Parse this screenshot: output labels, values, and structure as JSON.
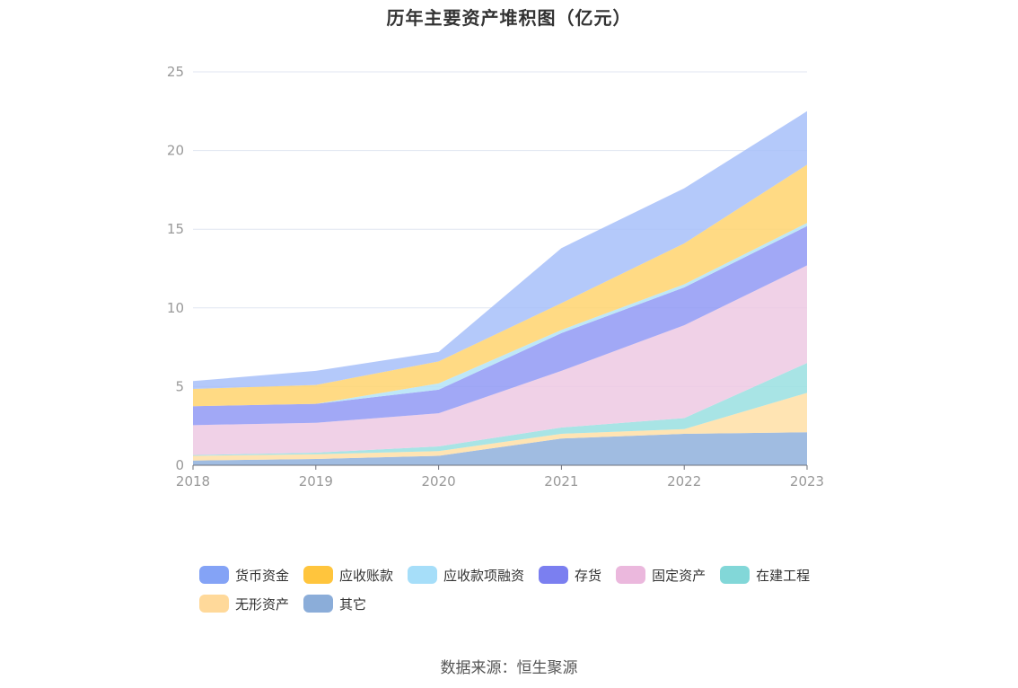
{
  "chart_data": {
    "type": "area",
    "stacked": true,
    "title": "历年主要资产堆积图（亿元）",
    "categories": [
      "2018",
      "2019",
      "2020",
      "2021",
      "2022",
      "2023"
    ],
    "ylim": [
      0,
      25
    ],
    "yticks": [
      0,
      5,
      10,
      15,
      20,
      25
    ],
    "grid": true,
    "legend_position": "bottom",
    "series": [
      {
        "name": "其它",
        "color": "#8fb0dc",
        "values": [
          0.3,
          0.4,
          0.6,
          1.7,
          2.0,
          2.1
        ]
      },
      {
        "name": "无形资产",
        "color": "#ffdfa6",
        "values": [
          0.3,
          0.3,
          0.3,
          0.3,
          0.3,
          2.5
        ]
      },
      {
        "name": "在建工程",
        "color": "#99dfe0",
        "values": [
          0.05,
          0.1,
          0.3,
          0.4,
          0.7,
          1.9
        ]
      },
      {
        "name": "固定资产",
        "color": "#edc9e3",
        "values": [
          1.9,
          1.9,
          2.1,
          3.6,
          5.9,
          6.2
        ]
      },
      {
        "name": "存货",
        "color": "#9099f5",
        "values": [
          1.2,
          1.2,
          1.5,
          2.4,
          2.4,
          2.5
        ]
      },
      {
        "name": "应收款项融资",
        "color": "#b3e3f7",
        "values": [
          0.0,
          0.0,
          0.4,
          0.2,
          0.2,
          0.2
        ]
      },
      {
        "name": "应收账款",
        "color": "#ffd36e",
        "values": [
          1.1,
          1.2,
          1.4,
          1.7,
          2.6,
          3.7
        ]
      },
      {
        "name": "货币资金",
        "color": "#a7bff9",
        "values": [
          0.5,
          0.9,
          0.6,
          3.5,
          3.5,
          3.4
        ]
      }
    ]
  },
  "legend": {
    "items": [
      {
        "label": "货币资金",
        "color": "#84a3f6"
      },
      {
        "label": "应收账款",
        "color": "#ffc53d"
      },
      {
        "label": "应收款项融资",
        "color": "#a6def9"
      },
      {
        "label": "存货",
        "color": "#7b7ff0"
      },
      {
        "label": "固定资产",
        "color": "#ebb8dd"
      },
      {
        "label": "在建工程",
        "color": "#82d7d8"
      },
      {
        "label": "无形资产",
        "color": "#ffd99a"
      },
      {
        "label": "其它",
        "color": "#8badd9"
      }
    ]
  },
  "source": "数据来源：恒生聚源"
}
